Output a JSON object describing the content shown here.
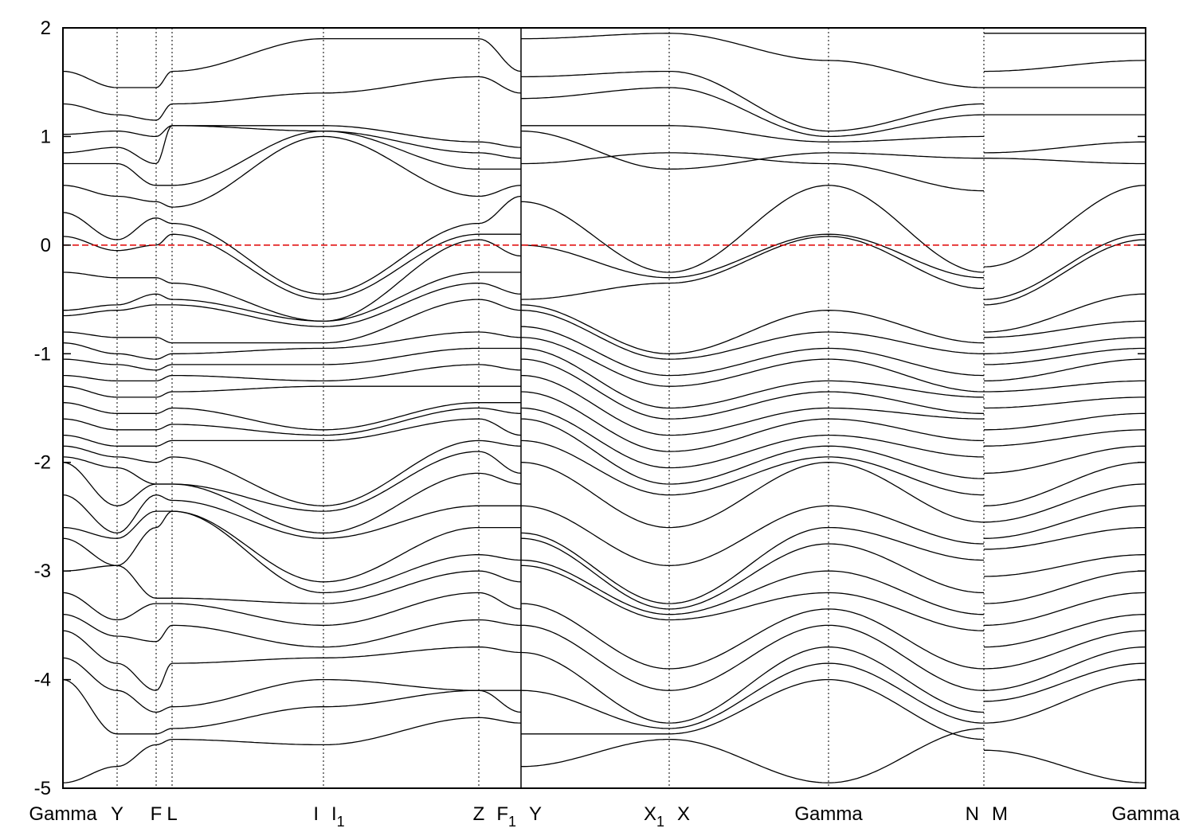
{
  "chart_data": {
    "type": "line",
    "title": "",
    "xlabel": "",
    "ylabel": "",
    "ylim": [
      -5,
      2
    ],
    "xlim": [
      0,
      13.59
    ],
    "yticks": [
      -5,
      -4,
      -3,
      -2,
      -1,
      0,
      1,
      2
    ],
    "grid": false,
    "fermi_level": 0,
    "colors": {
      "bands": "#000000",
      "fermi": "#e00000"
    },
    "kpath_nodes": [
      0,
      0.68,
      1.17,
      1.37,
      3.27,
      5.22,
      5.75,
      5.75,
      7.61,
      9.61,
      11.56,
      11.56,
      13.59
    ],
    "path_breaks": [
      5.75,
      11.56
    ],
    "kpoint_labels": [
      {
        "label": "Gamma",
        "sub": "",
        "k": 0,
        "align": "center"
      },
      {
        "label": "Y",
        "sub": "",
        "k": 0.68,
        "align": "center"
      },
      {
        "label": "F",
        "sub": "",
        "k": 1.17,
        "align": "center"
      },
      {
        "label": "L",
        "sub": "",
        "k": 1.37,
        "align": "center"
      },
      {
        "label": "I",
        "sub": "",
        "k": 3.27,
        "align": "right"
      },
      {
        "label": "I",
        "sub": "1",
        "k": 3.27,
        "align": "left"
      },
      {
        "label": "Z",
        "sub": "",
        "k": 5.22,
        "align": "center"
      },
      {
        "label": "F",
        "sub": "1",
        "k": 5.75,
        "align": "right"
      },
      {
        "label": "Y",
        "sub": "",
        "k": 5.75,
        "align": "left"
      },
      {
        "label": "X",
        "sub": "1",
        "k": 7.61,
        "align": "right"
      },
      {
        "label": "X",
        "sub": "",
        "k": 7.61,
        "align": "left"
      },
      {
        "label": "Gamma",
        "sub": "",
        "k": 9.61,
        "align": "center"
      },
      {
        "label": "N",
        "sub": "",
        "k": 11.56,
        "align": "right"
      },
      {
        "label": "M",
        "sub": "",
        "k": 11.56,
        "align": "left"
      },
      {
        "label": "Gamma",
        "sub": "",
        "k": 13.59,
        "align": "center"
      }
    ],
    "vlines": [
      0.68,
      1.17,
      1.37,
      3.27,
      5.22,
      5.75,
      7.61,
      9.61,
      11.56
    ],
    "series": [
      {
        "name": "band 1",
        "values": [
          -4.95,
          -4.8,
          -4.6,
          -4.55,
          -4.6,
          -4.35,
          -4.4,
          -4.8,
          -4.55,
          -4.95,
          -4.45,
          -4.65,
          -4.95
        ]
      },
      {
        "name": "band 2",
        "values": [
          -4.0,
          -4.5,
          -4.5,
          -4.45,
          -4.25,
          -4.1,
          -4.3,
          -4.5,
          -4.5,
          -4.0,
          -4.55,
          -4.4,
          -4.0
        ]
      },
      {
        "name": "band 3",
        "values": [
          -3.8,
          -4.1,
          -4.3,
          -4.25,
          -4.0,
          -4.1,
          -4.1,
          -4.1,
          -4.45,
          -3.85,
          -4.4,
          -4.2,
          -3.85
        ]
      },
      {
        "name": "band 4",
        "values": [
          -3.55,
          -3.85,
          -4.1,
          -3.85,
          -3.8,
          -3.7,
          -3.75,
          -3.75,
          -4.4,
          -3.7,
          -4.3,
          -4.1,
          -3.7
        ]
      },
      {
        "name": "band 5",
        "values": [
          -3.4,
          -3.6,
          -3.65,
          -3.5,
          -3.7,
          -3.45,
          -3.5,
          -3.5,
          -4.1,
          -3.5,
          -4.1,
          -3.9,
          -3.55
        ]
      },
      {
        "name": "band 6",
        "values": [
          -3.2,
          -3.45,
          -3.3,
          -3.3,
          -3.5,
          -3.2,
          -3.35,
          -3.3,
          -3.9,
          -3.35,
          -3.9,
          -3.7,
          -3.4
        ]
      },
      {
        "name": "band 7",
        "values": [
          -3.0,
          -2.95,
          -3.25,
          -3.25,
          -3.3,
          -3.0,
          -3.1,
          -2.95,
          -3.45,
          -3.2,
          -3.55,
          -3.5,
          -3.2
        ]
      },
      {
        "name": "band 8",
        "values": [
          -2.7,
          -2.95,
          -2.6,
          -2.45,
          -3.2,
          -2.85,
          -2.9,
          -2.9,
          -3.4,
          -3.0,
          -3.4,
          -3.3,
          -3.0
        ]
      },
      {
        "name": "band 9",
        "values": [
          -2.6,
          -2.7,
          -2.45,
          -2.45,
          -3.1,
          -2.6,
          -2.6,
          -2.7,
          -3.35,
          -2.75,
          -3.2,
          -3.05,
          -2.85
        ]
      },
      {
        "name": "band 10",
        "values": [
          -2.3,
          -2.65,
          -2.3,
          -2.35,
          -2.7,
          -2.4,
          -2.4,
          -2.65,
          -3.3,
          -2.6,
          -2.9,
          -2.8,
          -2.6
        ]
      },
      {
        "name": "band 11",
        "values": [
          -2.0,
          -2.4,
          -2.2,
          -2.2,
          -2.65,
          -2.1,
          -2.2,
          -2.4,
          -2.95,
          -2.4,
          -2.75,
          -2.7,
          -2.4
        ]
      },
      {
        "name": "band 12",
        "values": [
          -1.95,
          -2.05,
          -2.2,
          -2.2,
          -2.45,
          -1.9,
          -2.1,
          -2.0,
          -2.6,
          -2.0,
          -2.55,
          -2.55,
          -2.2
        ]
      },
      {
        "name": "band 13",
        "values": [
          -1.85,
          -1.95,
          -2.0,
          -1.95,
          -2.4,
          -1.8,
          -1.85,
          -1.8,
          -2.3,
          -1.95,
          -2.3,
          -2.4,
          -2.0
        ]
      },
      {
        "name": "band 14",
        "values": [
          -1.75,
          -1.85,
          -1.85,
          -1.8,
          -1.8,
          -1.6,
          -1.75,
          -1.6,
          -2.2,
          -1.85,
          -2.15,
          -2.1,
          -1.85
        ]
      },
      {
        "name": "band 15",
        "values": [
          -1.6,
          -1.7,
          -1.7,
          -1.65,
          -1.75,
          -1.5,
          -1.55,
          -1.5,
          -2.05,
          -1.75,
          -1.95,
          -1.85,
          -1.7
        ]
      },
      {
        "name": "band 16",
        "values": [
          -1.45,
          -1.55,
          -1.55,
          -1.5,
          -1.7,
          -1.45,
          -1.45,
          -1.35,
          -1.9,
          -1.6,
          -1.8,
          -1.7,
          -1.55
        ]
      },
      {
        "name": "band 17",
        "values": [
          -1.3,
          -1.4,
          -1.4,
          -1.35,
          -1.3,
          -1.3,
          -1.3,
          -1.2,
          -1.75,
          -1.5,
          -1.6,
          -1.5,
          -1.4
        ]
      },
      {
        "name": "band 18",
        "values": [
          -1.2,
          -1.25,
          -1.25,
          -1.2,
          -1.25,
          -1.1,
          -1.15,
          -1.05,
          -1.6,
          -1.35,
          -1.55,
          -1.35,
          -1.25
        ]
      },
      {
        "name": "band 19",
        "values": [
          -1.05,
          -1.1,
          -1.15,
          -1.1,
          -1.1,
          -0.95,
          -0.95,
          -0.95,
          -1.5,
          -1.25,
          -1.4,
          -1.25,
          -1.05
        ]
      },
      {
        "name": "band 20",
        "values": [
          -0.9,
          -1.0,
          -1.05,
          -1.0,
          -0.95,
          -0.8,
          -0.85,
          -0.85,
          -1.3,
          -1.05,
          -1.35,
          -1.1,
          -0.95
        ]
      },
      {
        "name": "band 21",
        "values": [
          -0.8,
          -0.85,
          -0.85,
          -0.9,
          -0.9,
          -0.5,
          -0.6,
          -0.75,
          -1.2,
          -0.95,
          -1.2,
          -1.0,
          -0.85
        ]
      },
      {
        "name": "band 22",
        "values": [
          -0.65,
          -0.6,
          -0.55,
          -0.55,
          -0.75,
          -0.35,
          -0.45,
          -0.6,
          -1.05,
          -0.8,
          -1.0,
          -0.85,
          -0.7
        ]
      },
      {
        "name": "band 23",
        "values": [
          -0.6,
          -0.55,
          -0.45,
          -0.5,
          -0.7,
          -0.25,
          -0.25,
          -0.55,
          -1.0,
          -0.6,
          -0.9,
          -0.8,
          -0.45
        ]
      },
      {
        "name": "band 24",
        "values": [
          -0.25,
          -0.3,
          -0.3,
          -0.35,
          -0.7,
          0.05,
          -0.1,
          -0.5,
          -0.35,
          0.08,
          -0.4,
          -0.55,
          0.05
        ]
      },
      {
        "name": "band 25",
        "values": [
          0.08,
          -0.05,
          0.0,
          0.1,
          -0.5,
          0.1,
          0.1,
          0.0,
          -0.3,
          0.1,
          -0.3,
          -0.5,
          0.1
        ]
      },
      {
        "name": "band 26",
        "values": [
          0.3,
          0.05,
          0.25,
          0.2,
          -0.45,
          0.2,
          0.45,
          0.4,
          -0.25,
          0.55,
          -0.25,
          -0.2,
          0.55
        ]
      },
      {
        "name": "band 27",
        "values": [
          0.55,
          0.45,
          0.4,
          0.35,
          1.0,
          0.45,
          0.55,
          0.75,
          0.85,
          0.75,
          0.5,
          0.8,
          0.75
        ]
      },
      {
        "name": "band 28",
        "values": [
          0.75,
          0.75,
          0.55,
          0.55,
          1.05,
          0.7,
          0.7,
          1.05,
          0.7,
          0.85,
          0.8,
          0.85,
          0.95
        ]
      },
      {
        "name": "band 29",
        "values": [
          0.85,
          0.9,
          0.75,
          1.1,
          1.05,
          0.85,
          0.8,
          1.1,
          1.1,
          0.95,
          1.0,
          1.2,
          1.2
        ]
      },
      {
        "name": "band 30",
        "values": [
          1.02,
          1.05,
          1.0,
          1.1,
          1.1,
          0.95,
          0.9,
          1.35,
          1.45,
          1.0,
          1.2,
          1.45,
          1.45
        ]
      },
      {
        "name": "band 31",
        "values": [
          1.3,
          1.2,
          1.15,
          1.3,
          1.4,
          1.55,
          1.4,
          1.55,
          1.6,
          1.05,
          1.3,
          1.6,
          1.7
        ]
      },
      {
        "name": "band 32",
        "values": [
          1.6,
          1.45,
          1.45,
          1.6,
          1.9,
          1.9,
          1.6,
          1.9,
          1.95,
          1.7,
          1.45,
          1.95,
          1.95
        ]
      }
    ]
  }
}
